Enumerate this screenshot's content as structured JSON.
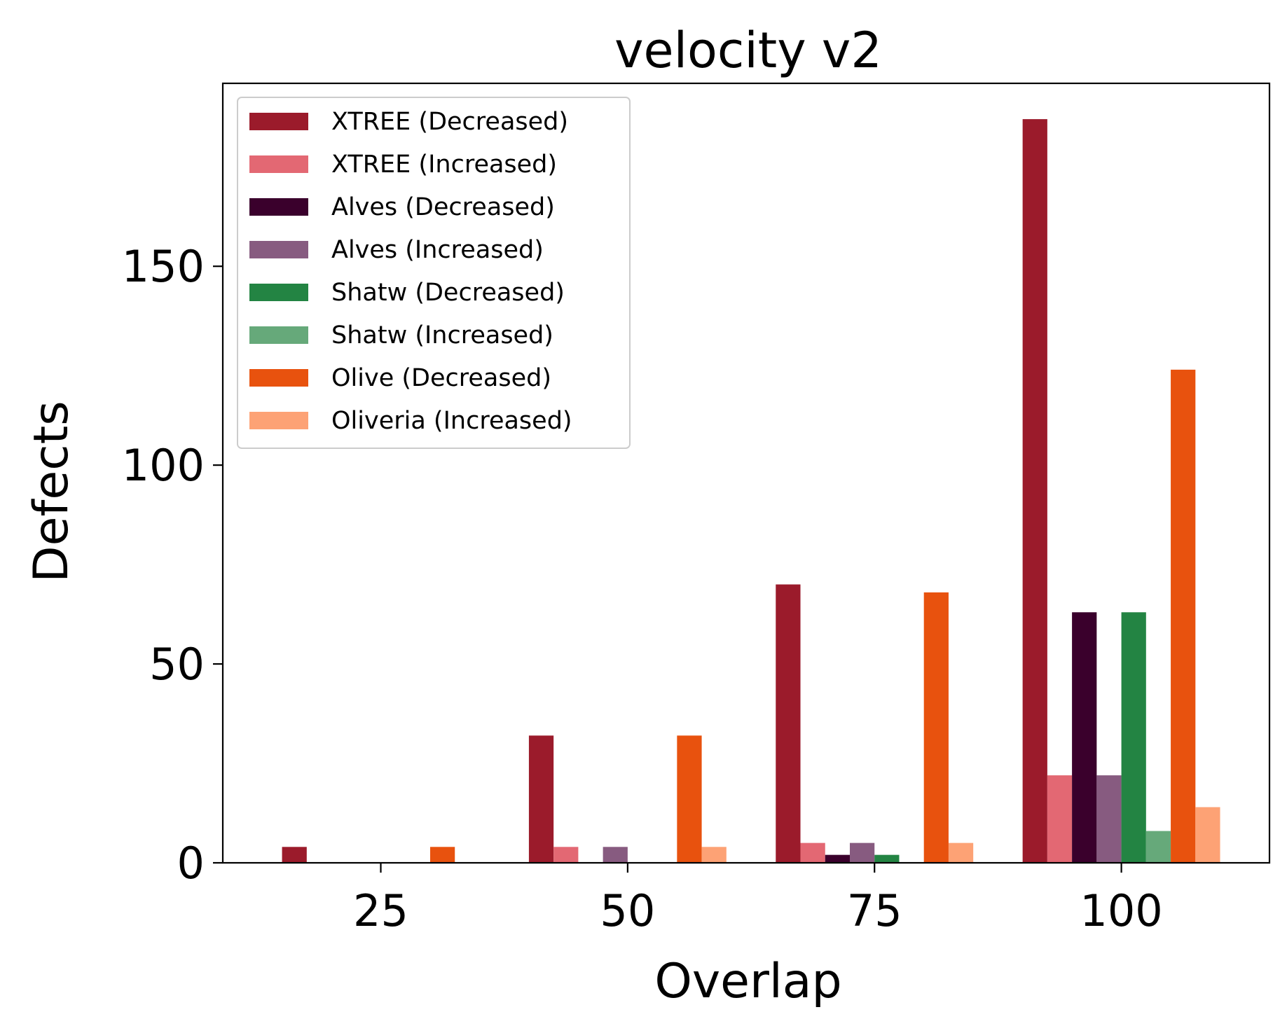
{
  "chart_data": {
    "type": "bar",
    "title": "velocity v2",
    "xlabel": "Overlap",
    "ylabel": "Defects",
    "categories": [
      25,
      50,
      75,
      100
    ],
    "xlim": [
      9,
      115
    ],
    "ylim": [
      0,
      196
    ],
    "xticks": [
      25,
      50,
      75,
      100
    ],
    "yticks": [
      0,
      50,
      100,
      150
    ],
    "legend_position": "top-left",
    "grid": false,
    "series": [
      {
        "name": "XTREE (Decreased)",
        "color": "#9b1b2b",
        "values": [
          4,
          32,
          70,
          187
        ]
      },
      {
        "name": "XTREE (Increased)",
        "color": "#e36873",
        "values": [
          0,
          4,
          5,
          22
        ]
      },
      {
        "name": "Alves (Decreased)",
        "color": "#3a002c",
        "values": [
          0,
          0,
          2,
          63
        ]
      },
      {
        "name": "Alves (Increased)",
        "color": "#875b80",
        "values": [
          0,
          4,
          5,
          22
        ]
      },
      {
        "name": "Shatw (Decreased)",
        "color": "#238443",
        "values": [
          0,
          0,
          2,
          63
        ]
      },
      {
        "name": "Shatw (Increased)",
        "color": "#66a97a",
        "values": [
          0,
          0,
          0,
          8
        ]
      },
      {
        "name": "Olive (Decreased)",
        "color": "#e8520e",
        "values": [
          4,
          32,
          68,
          124
        ]
      },
      {
        "name": "Oliveria (Increased)",
        "color": "#fda275",
        "values": [
          0,
          4,
          5,
          14
        ]
      }
    ]
  }
}
